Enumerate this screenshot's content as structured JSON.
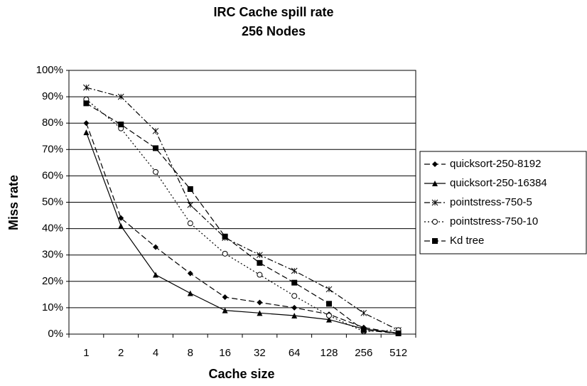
{
  "chart_data": {
    "type": "line",
    "title": "IRC Cache spill rate",
    "subtitle": "256 Nodes",
    "x_label": "Cache size",
    "y_label": "Miss rate",
    "categories": [
      "1",
      "2",
      "4",
      "8",
      "16",
      "32",
      "64",
      "128",
      "256",
      "512"
    ],
    "ylim": [
      0,
      100
    ],
    "yticks": [
      {
        "value": 0,
        "label": "0%"
      },
      {
        "value": 10,
        "label": "10%"
      },
      {
        "value": 20,
        "label": "20%"
      },
      {
        "value": 30,
        "label": "30%"
      },
      {
        "value": 40,
        "label": "40%"
      },
      {
        "value": 50,
        "label": "50%"
      },
      {
        "value": 60,
        "label": "60%"
      },
      {
        "value": 70,
        "label": "70%"
      },
      {
        "value": 80,
        "label": "80%"
      },
      {
        "value": 90,
        "label": "90%"
      },
      {
        "value": 100,
        "label": "100%"
      }
    ],
    "grid": true,
    "legend": "right",
    "series": [
      {
        "name": "quicksort-250-8192",
        "color": "#000000",
        "marker": "diamond",
        "dash": "dashed",
        "values": [
          80,
          44,
          33,
          23,
          14,
          12,
          10,
          7.5,
          2.5,
          0.3
        ]
      },
      {
        "name": "quicksort-250-16384",
        "color": "#000000",
        "marker": "triangle",
        "dash": "solid",
        "values": [
          76.5,
          41,
          22.5,
          15.5,
          9,
          8,
          7,
          5.5,
          2,
          0.3
        ]
      },
      {
        "name": "pointstress-750-5",
        "color": "#000000",
        "marker": "star",
        "dash": "dashdot",
        "values": [
          93.5,
          90,
          77,
          49,
          36.5,
          30,
          24,
          17,
          8,
          1.5
        ]
      },
      {
        "name": "pointstress-750-10",
        "color": "#000000",
        "marker": "circle",
        "dash": "dotted",
        "values": [
          89,
          78,
          61.5,
          42,
          30.5,
          22.5,
          14.5,
          7,
          1,
          1.5
        ]
      },
      {
        "name": "Kd tree",
        "color": "#000000",
        "marker": "square",
        "dash": "dashed",
        "values": [
          87.5,
          79.5,
          70.5,
          55,
          37,
          27,
          19.5,
          11.5,
          1.5,
          0.3
        ]
      }
    ]
  }
}
